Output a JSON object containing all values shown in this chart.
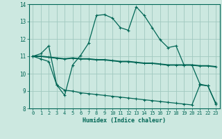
{
  "xlabel": "Humidex (Indice chaleur)",
  "bg_color": "#cce8e0",
  "grid_color": "#a0c8bf",
  "line_color": "#006655",
  "xlim": [
    -0.5,
    23.5
  ],
  "ylim": [
    8,
    14
  ],
  "xticks": [
    0,
    1,
    2,
    3,
    4,
    5,
    6,
    7,
    8,
    9,
    10,
    11,
    12,
    13,
    14,
    15,
    16,
    17,
    18,
    19,
    20,
    21,
    22,
    23
  ],
  "yticks": [
    8,
    9,
    10,
    11,
    12,
    13,
    14
  ],
  "line1_x": [
    0,
    1,
    2,
    3,
    4,
    5,
    6,
    7,
    8,
    9,
    10,
    11,
    12,
    13,
    14,
    15,
    16,
    17,
    18,
    19,
    20,
    21,
    22,
    23
  ],
  "line1_y": [
    11.0,
    11.15,
    11.6,
    9.35,
    8.75,
    10.5,
    11.05,
    11.75,
    13.35,
    13.4,
    13.2,
    12.65,
    12.5,
    13.85,
    13.35,
    12.65,
    11.95,
    11.5,
    11.6,
    10.5,
    10.5,
    9.4,
    9.3,
    8.3
  ],
  "line2_x": [
    0,
    1,
    2,
    3,
    4,
    5,
    6,
    7,
    8,
    9,
    10,
    11,
    12,
    13,
    14,
    15,
    16,
    17,
    18,
    19,
    20,
    21,
    22,
    23
  ],
  "line2_y": [
    11.0,
    11.0,
    10.95,
    10.9,
    10.85,
    10.9,
    10.85,
    10.85,
    10.8,
    10.8,
    10.75,
    10.7,
    10.7,
    10.65,
    10.6,
    10.6,
    10.55,
    10.5,
    10.5,
    10.5,
    10.5,
    10.45,
    10.45,
    10.4
  ],
  "line3_x": [
    0,
    1,
    2,
    3,
    4,
    5,
    6,
    7,
    8,
    9,
    10,
    11,
    12,
    13,
    14,
    15,
    16,
    17,
    18,
    19,
    20,
    21,
    22,
    23
  ],
  "line3_y": [
    11.0,
    10.85,
    10.7,
    9.35,
    9.05,
    9.0,
    8.9,
    8.85,
    8.8,
    8.75,
    8.7,
    8.65,
    8.6,
    8.55,
    8.5,
    8.45,
    8.4,
    8.35,
    8.3,
    8.25,
    8.2,
    9.35,
    9.3,
    8.25
  ]
}
